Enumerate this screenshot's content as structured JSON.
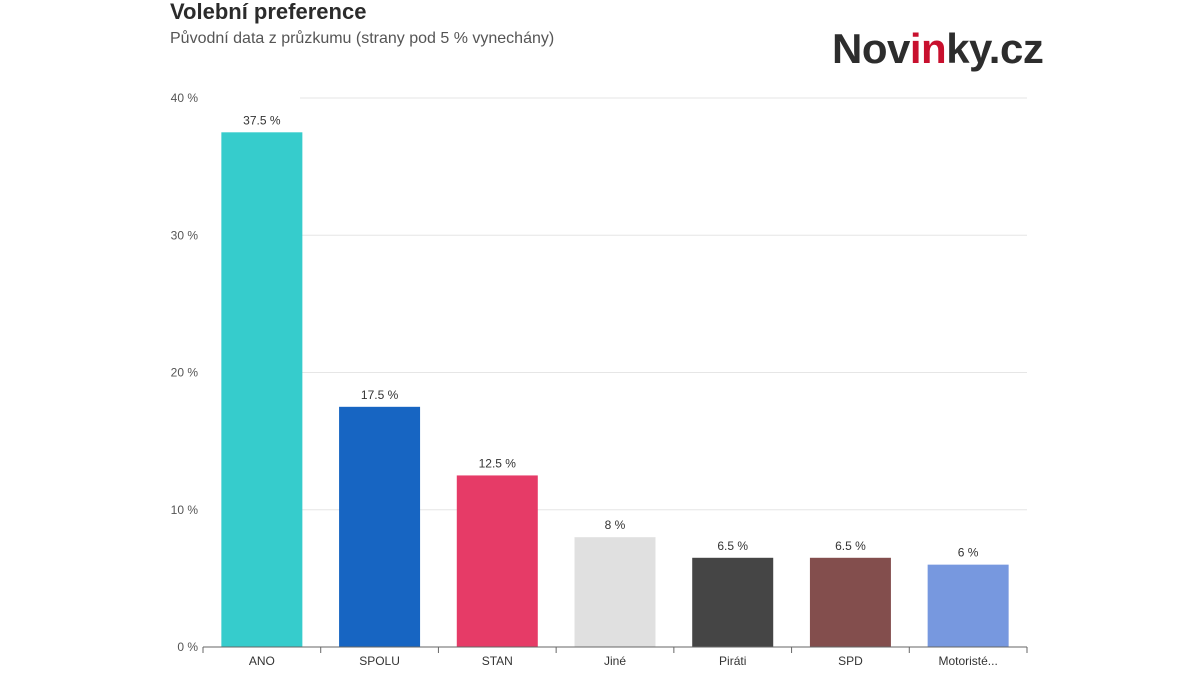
{
  "header": {
    "title": "Volební preference",
    "subtitle": "Původní data z průzkumu (strany pod 5 % vynechány)"
  },
  "logo": {
    "part1": "Nov",
    "part2": "in",
    "part3": "ky.cz",
    "accent_color": "#c8102e"
  },
  "chart_data": {
    "type": "bar",
    "title": "Volební preference",
    "subtitle": "Původní data z průzkumu (strany pod 5 % vynechány)",
    "xlabel": "",
    "ylabel": "",
    "ylim": [
      0,
      40
    ],
    "yticks": [
      0,
      10,
      20,
      30,
      40
    ],
    "ytick_labels": [
      "0 %",
      "10 %",
      "20 %",
      "30 %",
      "40 %"
    ],
    "grid": true,
    "categories": [
      "ANO",
      "SPOLU",
      "STAN",
      "Jiné",
      "Piráti",
      "SPD",
      "Motoristé..."
    ],
    "values": [
      37.5,
      17.5,
      12.5,
      8,
      6.5,
      6.5,
      6
    ],
    "data_labels": [
      "37.5 %",
      "17.5 %",
      "12.5 %",
      "8 %",
      "6.5 %",
      "6.5 %",
      "6 %"
    ],
    "colors": [
      "#36cccc",
      "#1765c2",
      "#e63b67",
      "#e0e0e0",
      "#454545",
      "#834e4d",
      "#7798df"
    ]
  }
}
